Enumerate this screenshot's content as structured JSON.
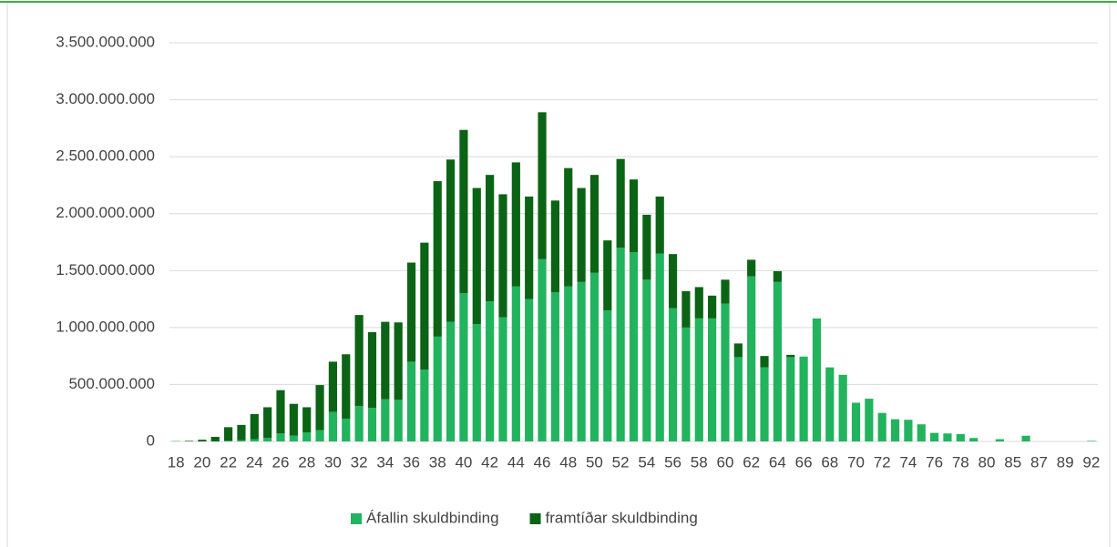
{
  "chart_data": {
    "type": "stacked_bar",
    "categories": [
      "18",
      null,
      "20",
      null,
      "22",
      null,
      "24",
      null,
      "26",
      null,
      "28",
      null,
      "30",
      null,
      "32",
      null,
      "34",
      null,
      "36",
      null,
      "38",
      null,
      "40",
      null,
      "42",
      null,
      "44",
      null,
      "46",
      null,
      "48",
      null,
      "50",
      null,
      "52",
      null,
      "54",
      null,
      "56",
      null,
      "58",
      null,
      "60",
      null,
      "62",
      null,
      "64",
      null,
      "66",
      null,
      "68",
      null,
      "70",
      null,
      "72",
      null,
      "74",
      null,
      "76",
      null,
      "78",
      null,
      "80",
      null,
      "85",
      null,
      "87",
      null,
      "89",
      null,
      "92"
    ],
    "series": [
      {
        "name": "Áfallin skuldbinding",
        "color": "#22b35e",
        "values": [
          3000000.0,
          0,
          0,
          0,
          5000000.0,
          10000000.0,
          20000000.0,
          30000000.0,
          70000000.0,
          50000000.0,
          80000000.0,
          100000000.0,
          260000000.0,
          200000000.0,
          310000000.0,
          295000000.0,
          370000000.0,
          365000000.0,
          700000000.0,
          630000000.0,
          920000000.0,
          1050000000.0,
          1300000000.0,
          1030000000.0,
          1230000000.0,
          1090000000.0,
          1360000000.0,
          1250000000.0,
          1600000000.0,
          1310000000.0,
          1360000000.0,
          1400000000.0,
          1480000000.0,
          1150000000.0,
          1700000000.0,
          1660000000.0,
          1420000000.0,
          1650000000.0,
          1170000000.0,
          1000000000.0,
          1080000000.0,
          1080000000.0,
          1210000000.0,
          740000000.0,
          1450000000.0,
          650000000.0,
          1400000000.0,
          740000000.0,
          745000000.0,
          1080000000.0,
          650000000.0,
          585000000.0,
          340000000.0,
          375000000.0,
          250000000.0,
          195000000.0,
          190000000.0,
          150000000.0,
          75000000.0,
          70000000.0,
          65000000.0,
          30000000.0,
          0,
          20000000.0,
          0,
          50000000.0,
          0,
          0,
          0,
          0,
          5000000.0
        ]
      },
      {
        "name": "framtíðar skuldbinding",
        "color": "#0b6415",
        "values": [
          0,
          5000000.0,
          15000000.0,
          40000000.0,
          120000000.0,
          135000000.0,
          220000000.0,
          270000000.0,
          380000000.0,
          280000000.0,
          220000000.0,
          395000000.0,
          440000000.0,
          565000000.0,
          800000000.0,
          665000000.0,
          680000000.0,
          680000000.0,
          870000000.0,
          1115000000.0,
          1365000000.0,
          1425000000.0,
          1435000000.0,
          1195000000.0,
          1110000000.0,
          1080000000.0,
          1090000000.0,
          900000000.0,
          1290000000.0,
          805000000.0,
          1040000000.0,
          825000000.0,
          860000000.0,
          615000000.0,
          780000000.0,
          640000000.0,
          570000000.0,
          500000000.0,
          475000000.0,
          320000000.0,
          275000000.0,
          200000000.0,
          210000000.0,
          120000000.0,
          145000000.0,
          100000000.0,
          95000000.0,
          20000000.0,
          0,
          0,
          0,
          0,
          0,
          0,
          0,
          0,
          0,
          0,
          0,
          0,
          0,
          0,
          0,
          0,
          0,
          0,
          0,
          0,
          0,
          0,
          0
        ]
      }
    ],
    "ylim": [
      0,
      3500000000
    ],
    "yticks": [
      0,
      {
        "value": 500000000,
        "label": "500.000.000"
      },
      {
        "value": 1000000000,
        "label": "1.000.000.000"
      },
      {
        "value": 1500000000,
        "label": "1.500.000.000"
      },
      {
        "value": 2000000000,
        "label": "2.000.000.000"
      },
      {
        "value": 2500000000,
        "label": "2.500.000.000"
      },
      {
        "value": 3000000000,
        "label": "3.000.000.000"
      },
      {
        "value": 3500000000,
        "label": "3.500.000.000"
      }
    ],
    "grid": true,
    "legend": "bottom"
  }
}
